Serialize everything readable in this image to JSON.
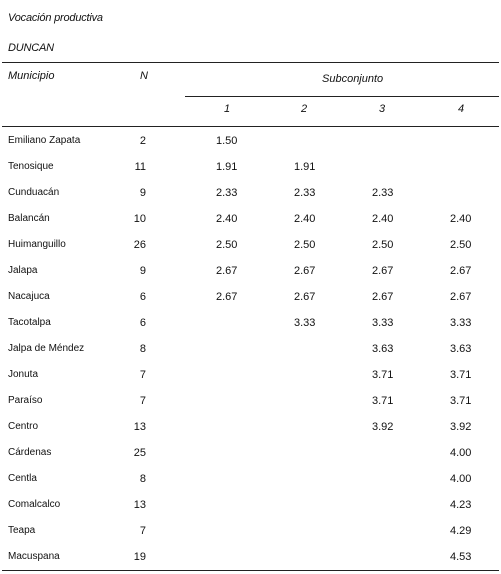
{
  "header": {
    "title": "Vocación productiva",
    "subtitle": "DUNCAN"
  },
  "table": {
    "columns": {
      "municipio": "Municipio",
      "n": "N",
      "subconjunto": "Subconjunto",
      "sub": [
        "1",
        "2",
        "3",
        "4"
      ]
    },
    "rows": [
      {
        "municipio": "Emiliano Zapata",
        "n": "2",
        "s1": "1.50",
        "s2": "",
        "s3": "",
        "s4": ""
      },
      {
        "municipio": "Tenosique",
        "n": "11",
        "s1": "1.91",
        "s2": "1.91",
        "s3": "",
        "s4": ""
      },
      {
        "municipio": "Cunduacán",
        "n": "9",
        "s1": "2.33",
        "s2": "2.33",
        "s3": "2.33",
        "s4": ""
      },
      {
        "municipio": "Balancán",
        "n": "10",
        "s1": "2.40",
        "s2": "2.40",
        "s3": "2.40",
        "s4": "2.40"
      },
      {
        "municipio": "Huimanguillo",
        "n": "26",
        "s1": "2.50",
        "s2": "2.50",
        "s3": "2.50",
        "s4": "2.50"
      },
      {
        "municipio": "Jalapa",
        "n": "9",
        "s1": "2.67",
        "s2": "2.67",
        "s3": "2.67",
        "s4": "2.67"
      },
      {
        "municipio": "Nacajuca",
        "n": "6",
        "s1": "2.67",
        "s2": "2.67",
        "s3": "2.67",
        "s4": "2.67"
      },
      {
        "municipio": "Tacotalpa",
        "n": "6",
        "s1": "",
        "s2": "3.33",
        "s3": "3.33",
        "s4": "3.33"
      },
      {
        "municipio": "Jalpa de Méndez",
        "n": "8",
        "s1": "",
        "s2": "",
        "s3": "3.63",
        "s4": "3.63"
      },
      {
        "municipio": "Jonuta",
        "n": "7",
        "s1": "",
        "s2": "",
        "s3": "3.71",
        "s4": "3.71"
      },
      {
        "municipio": "Paraíso",
        "n": "7",
        "s1": "",
        "s2": "",
        "s3": "3.71",
        "s4": "3.71"
      },
      {
        "municipio": "Centro",
        "n": "13",
        "s1": "",
        "s2": "",
        "s3": "3.92",
        "s4": "3.92"
      },
      {
        "municipio": "Cárdenas",
        "n": "25",
        "s1": "",
        "s2": "",
        "s3": "",
        "s4": "4.00"
      },
      {
        "municipio": "Centla",
        "n": "8",
        "s1": "",
        "s2": "",
        "s3": "",
        "s4": "4.00"
      },
      {
        "municipio": "Comalcalco",
        "n": "13",
        "s1": "",
        "s2": "",
        "s3": "",
        "s4": "4.23"
      },
      {
        "municipio": "Teapa",
        "n": "7",
        "s1": "",
        "s2": "",
        "s3": "",
        "s4": "4.29"
      },
      {
        "municipio": "Macuspana",
        "n": "19",
        "s1": "",
        "s2": "",
        "s3": "",
        "s4": "4.53"
      }
    ]
  }
}
